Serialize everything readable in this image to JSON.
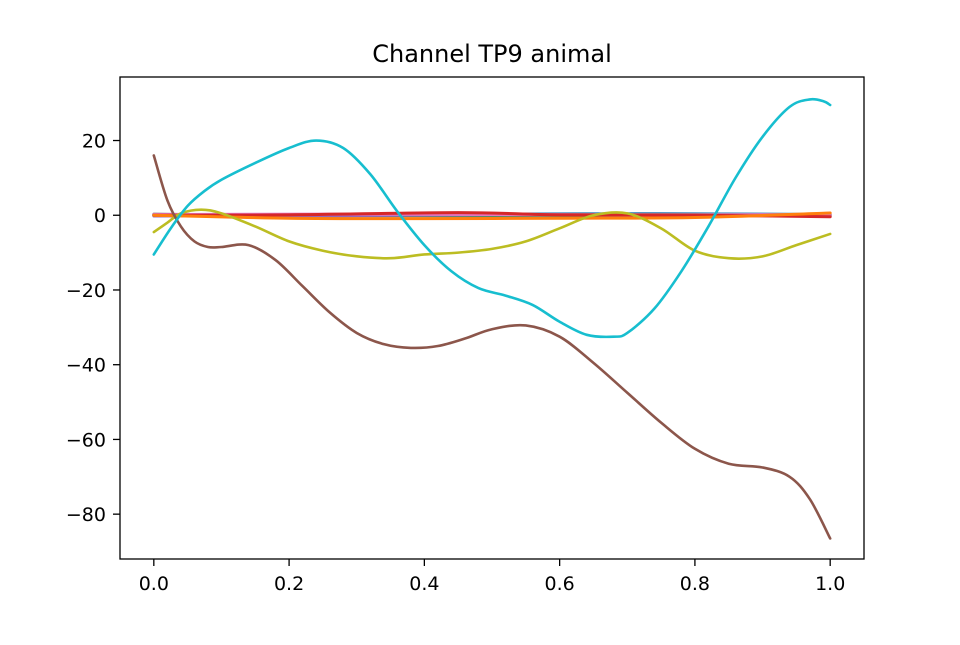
{
  "chart_data": {
    "type": "line",
    "title": "Channel TP9 animal",
    "xlabel": "",
    "ylabel": "",
    "xlim": [
      -0.05,
      1.05
    ],
    "ylim": [
      -92,
      37
    ],
    "grid": false,
    "legend": "none",
    "x_ticks": [
      0.0,
      0.2,
      0.4,
      0.6,
      0.8,
      1.0
    ],
    "x_tick_labels": [
      "0.0",
      "0.2",
      "0.4",
      "0.6",
      "0.8",
      "1.0"
    ],
    "y_ticks": [
      20,
      0,
      -20,
      -40,
      -60,
      -80
    ],
    "y_tick_labels": [
      "20",
      "0",
      "−20",
      "−40",
      "−60",
      "−80"
    ],
    "series": [
      {
        "name": "series-cyan",
        "color": "#17becf",
        "x": [
          0,
          0.025,
          0.05,
          0.075,
          0.1,
          0.15,
          0.2,
          0.24,
          0.28,
          0.32,
          0.36,
          0.4,
          0.44,
          0.48,
          0.52,
          0.56,
          0.6,
          0.64,
          0.68,
          0.7,
          0.74,
          0.78,
          0.82,
          0.86,
          0.9,
          0.94,
          0.97,
          0.99,
          1.0
        ],
        "y": [
          -10.5,
          -3.5,
          2.5,
          6.5,
          9.5,
          14,
          18,
          20,
          18,
          11,
          1,
          -8,
          -15,
          -19.5,
          -21.5,
          -24,
          -28.5,
          -32,
          -32.5,
          -31.5,
          -25,
          -15,
          -3,
          10,
          21,
          29,
          31,
          30.5,
          29.5
        ]
      },
      {
        "name": "series-brown",
        "color": "#8c564b",
        "x": [
          0,
          0.02,
          0.04,
          0.06,
          0.08,
          0.1,
          0.14,
          0.18,
          0.22,
          0.26,
          0.3,
          0.34,
          0.38,
          0.42,
          0.46,
          0.5,
          0.55,
          0.6,
          0.65,
          0.7,
          0.75,
          0.8,
          0.85,
          0.9,
          0.94,
          0.97,
          1.0
        ],
        "y": [
          16,
          4,
          -3,
          -7,
          -8.5,
          -8.5,
          -8,
          -12,
          -19,
          -26,
          -31.5,
          -34.5,
          -35.5,
          -35,
          -33,
          -30.5,
          -29.5,
          -32.5,
          -39.5,
          -47.5,
          -55.5,
          -62.5,
          -66.5,
          -67.5,
          -70,
          -76,
          -86.5
        ]
      },
      {
        "name": "series-olive",
        "color": "#bcbd22",
        "x": [
          0,
          0.02,
          0.04,
          0.07,
          0.1,
          0.15,
          0.2,
          0.25,
          0.3,
          0.35,
          0.4,
          0.45,
          0.5,
          0.55,
          0.6,
          0.65,
          0.7,
          0.75,
          0.8,
          0.85,
          0.9,
          0.95,
          1.0
        ],
        "y": [
          -4.5,
          -2,
          0.5,
          1.5,
          0.5,
          -3,
          -7,
          -9.5,
          -11,
          -11.5,
          -10.5,
          -10,
          -9,
          -7,
          -3.5,
          0,
          0.5,
          -3.5,
          -9.5,
          -11.5,
          -11,
          -8,
          -5
        ]
      },
      {
        "name": "series-orange",
        "color": "#ff7f0e",
        "x": [
          0,
          0.2,
          0.4,
          0.6,
          0.8,
          1.0
        ],
        "y": [
          0,
          -0.8,
          -0.9,
          -0.8,
          -0.6,
          0.6
        ]
      },
      {
        "name": "series-red",
        "color": "#d62728",
        "x": [
          0,
          0.2,
          0.45,
          0.6,
          0.8,
          1.0
        ],
        "y": [
          0,
          0.1,
          0.7,
          0.1,
          0,
          -0.4
        ]
      },
      {
        "name": "series-pink",
        "color": "#e377c2",
        "x": [
          0,
          0.25,
          0.5,
          0.75,
          1.0
        ],
        "y": [
          0.2,
          0.3,
          0.2,
          0.1,
          0.2
        ]
      },
      {
        "name": "series-purple",
        "color": "#9467bd",
        "x": [
          0,
          0.25,
          0.5,
          0.75,
          1.0
        ],
        "y": [
          -0.2,
          -0.1,
          0.1,
          0,
          -0.2
        ]
      },
      {
        "name": "series-green",
        "color": "#2ca02c",
        "x": [
          0,
          0.25,
          0.5,
          0.75,
          1.0
        ],
        "y": [
          0.1,
          0,
          -0.2,
          0.1,
          0.1
        ]
      },
      {
        "name": "series-gray",
        "color": "#7f7f7f",
        "x": [
          0,
          0.25,
          0.5,
          0.75,
          1.0
        ],
        "y": [
          0.3,
          -0.2,
          0.1,
          0.2,
          -0.1
        ]
      },
      {
        "name": "series-blue",
        "color": "#1f77b4",
        "x": [
          0,
          0.25,
          0.5,
          0.75,
          1.0
        ],
        "y": [
          0,
          0.1,
          0.3,
          0.4,
          0.2
        ]
      }
    ]
  }
}
